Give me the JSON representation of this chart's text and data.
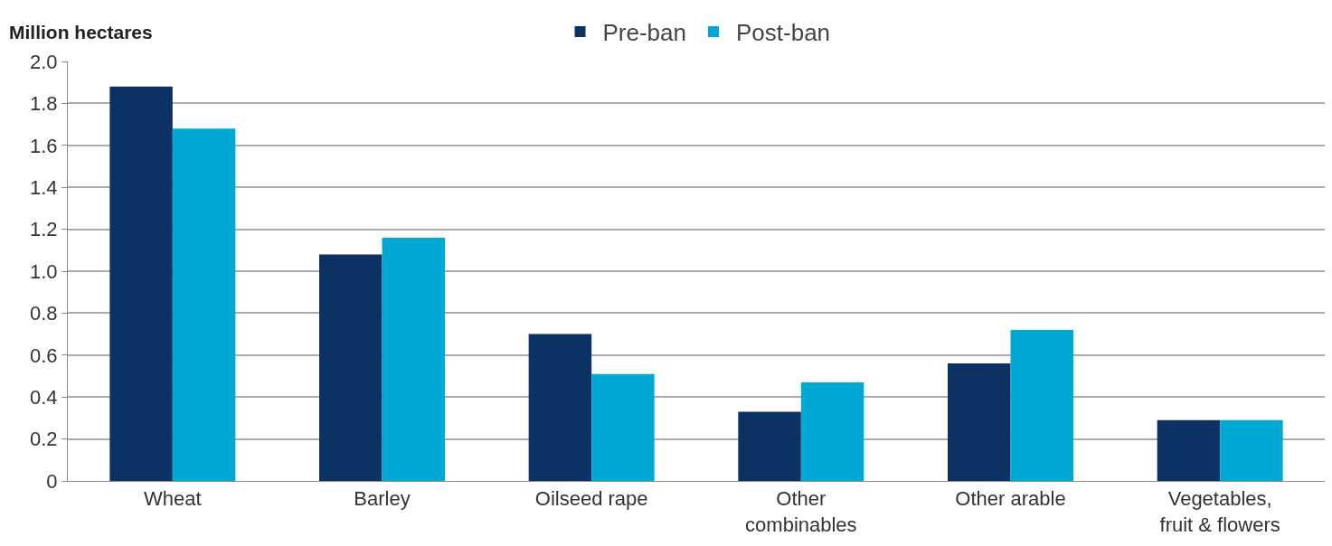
{
  "chart_data": {
    "type": "bar",
    "ylabel": "Million hectares",
    "categories": [
      "Wheat",
      "Barley",
      "Oilseed rape",
      "Other combinables",
      "Other arable",
      "Vegetables, fruit & flowers"
    ],
    "series": [
      {
        "name": "Pre-ban",
        "color": "#0b3263",
        "values": [
          1.88,
          1.08,
          0.7,
          0.33,
          0.56,
          0.29
        ]
      },
      {
        "name": "Post-ban",
        "color": "#00a8d4",
        "values": [
          1.68,
          1.16,
          0.51,
          0.47,
          0.72,
          0.29
        ]
      }
    ],
    "ylim": [
      0,
      2.0
    ],
    "yticks": [
      0,
      0.2,
      0.4,
      0.6,
      0.8,
      {
        "value": 1.0,
        "label": "1.0"
      },
      1.2,
      1.4,
      1.6,
      1.8,
      {
        "value": 2.0,
        "label": "2.0"
      }
    ],
    "grid": "y",
    "legend": "top"
  }
}
